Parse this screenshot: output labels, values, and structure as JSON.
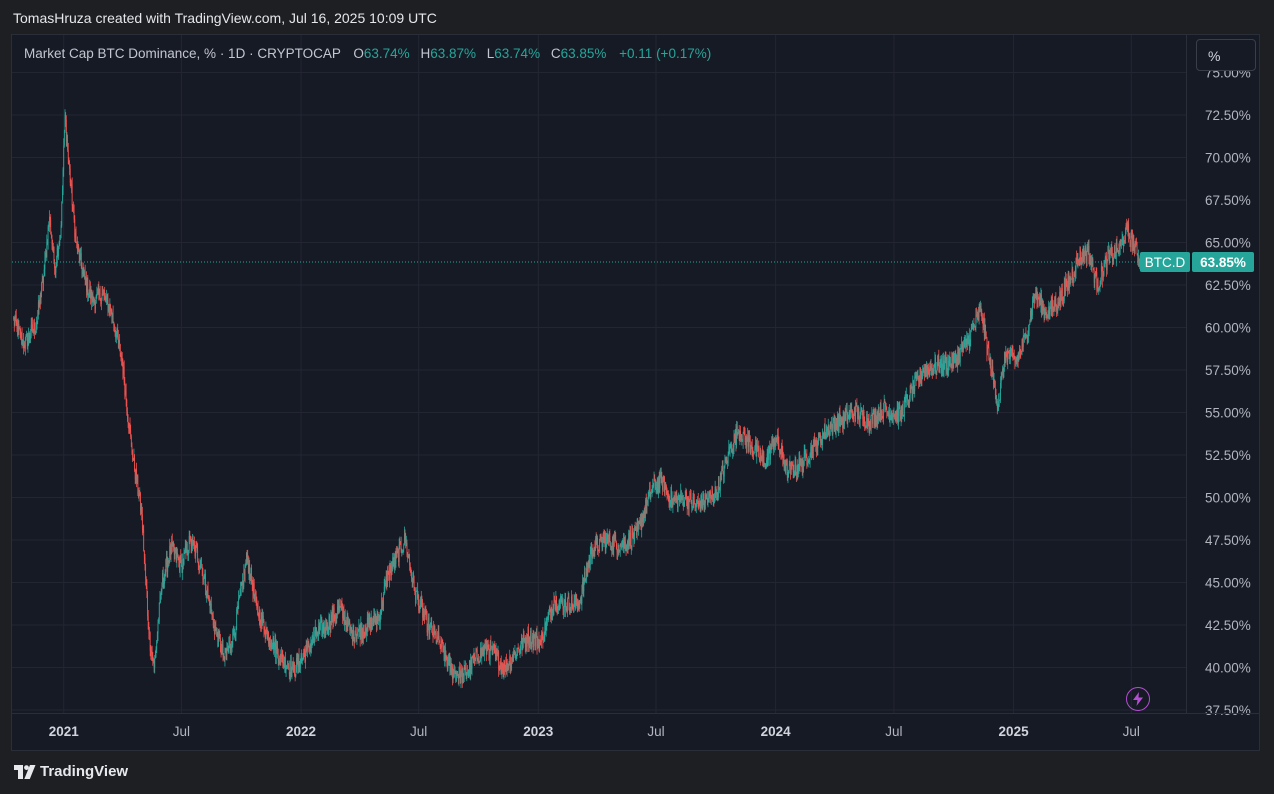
{
  "caption": "TomasHruza created with TradingView.com, Jul 16, 2025 10:09 UTC",
  "legend": {
    "title": "Market Cap BTC Dominance, % · 1D · CRYPTOCAP",
    "open_label": "O",
    "open_value": "63.74%",
    "high_label": "H",
    "high_value": "63.87%",
    "low_label": "L",
    "low_value": "63.74%",
    "close_label": "C",
    "close_value": "63.85%",
    "change": "+0.11 (+0.17%)"
  },
  "scale_button": "%",
  "brand": "TradingView",
  "icons": {
    "brand_logo": "tradingview-logo-icon",
    "bolt": "lightning-icon"
  },
  "colors": {
    "up": "#26a69a",
    "down": "#ef5350",
    "background": "#161a25",
    "grid": "#232632",
    "bolt": "#b34ed1"
  },
  "chart_data": {
    "type": "candlestick",
    "title": "Market Cap BTC Dominance, %",
    "interval": "1D",
    "exchange": "CRYPTOCAP",
    "x_range": [
      "2020-10-15",
      "2025-07-16"
    ],
    "ylim": [
      37.5,
      75
    ],
    "y_unit": "%",
    "y_ticks": [
      "75.00%",
      "72.50%",
      "70.00%",
      "67.50%",
      "65.00%",
      "62.50%",
      "60.00%",
      "57.50%",
      "55.00%",
      "52.50%",
      "50.00%",
      "47.50%",
      "45.00%",
      "42.50%",
      "40.00%",
      "37.50%"
    ],
    "x_ticks": [
      {
        "label": "2021",
        "date": "2021-01-01",
        "bold": true
      },
      {
        "label": "Jul",
        "date": "2021-07-01",
        "bold": false
      },
      {
        "label": "2022",
        "date": "2022-01-01",
        "bold": true
      },
      {
        "label": "Jul",
        "date": "2022-07-01",
        "bold": false
      },
      {
        "label": "2023",
        "date": "2023-01-01",
        "bold": true
      },
      {
        "label": "Jul",
        "date": "2023-07-01",
        "bold": false
      },
      {
        "label": "2024",
        "date": "2024-01-01",
        "bold": true
      },
      {
        "label": "Jul",
        "date": "2024-07-01",
        "bold": false
      },
      {
        "label": "2025",
        "date": "2025-01-01",
        "bold": true
      },
      {
        "label": "Jul",
        "date": "2025-07-01",
        "bold": false
      }
    ],
    "price_line": {
      "label": "BTC.D",
      "value": 63.85,
      "value_text": "63.85%"
    },
    "series": [
      {
        "name": "BTC.D",
        "points": [
          {
            "date": "2020-10-15",
            "value": 60.5
          },
          {
            "date": "2020-11-01",
            "value": 59.0
          },
          {
            "date": "2020-11-20",
            "value": 60.2
          },
          {
            "date": "2020-12-01",
            "value": 63.0
          },
          {
            "date": "2020-12-10",
            "value": 66.5
          },
          {
            "date": "2020-12-18",
            "value": 63.5
          },
          {
            "date": "2020-12-28",
            "value": 66.0
          },
          {
            "date": "2021-01-03",
            "value": 72.5
          },
          {
            "date": "2021-01-08",
            "value": 70.0
          },
          {
            "date": "2021-01-20",
            "value": 65.0
          },
          {
            "date": "2021-02-01",
            "value": 63.0
          },
          {
            "date": "2021-02-15",
            "value": 61.5
          },
          {
            "date": "2021-03-01",
            "value": 62.0
          },
          {
            "date": "2021-03-15",
            "value": 61.0
          },
          {
            "date": "2021-04-01",
            "value": 58.0
          },
          {
            "date": "2021-04-15",
            "value": 53.0
          },
          {
            "date": "2021-05-01",
            "value": 49.0
          },
          {
            "date": "2021-05-12",
            "value": 42.0
          },
          {
            "date": "2021-05-20",
            "value": 40.0
          },
          {
            "date": "2021-06-01",
            "value": 45.0
          },
          {
            "date": "2021-06-15",
            "value": 47.0
          },
          {
            "date": "2021-07-01",
            "value": 46.0
          },
          {
            "date": "2021-07-15",
            "value": 47.5
          },
          {
            "date": "2021-08-01",
            "value": 46.0
          },
          {
            "date": "2021-08-20",
            "value": 42.5
          },
          {
            "date": "2021-09-05",
            "value": 40.5
          },
          {
            "date": "2021-09-20",
            "value": 42.0
          },
          {
            "date": "2021-10-10",
            "value": 46.5
          },
          {
            "date": "2021-10-25",
            "value": 43.5
          },
          {
            "date": "2021-11-10",
            "value": 42.0
          },
          {
            "date": "2021-12-01",
            "value": 40.5
          },
          {
            "date": "2021-12-20",
            "value": 39.8
          },
          {
            "date": "2022-01-10",
            "value": 41.0
          },
          {
            "date": "2022-01-25",
            "value": 42.0
          },
          {
            "date": "2022-02-10",
            "value": 42.5
          },
          {
            "date": "2022-03-01",
            "value": 43.5
          },
          {
            "date": "2022-03-20",
            "value": 42.0
          },
          {
            "date": "2022-04-10",
            "value": 42.3
          },
          {
            "date": "2022-05-01",
            "value": 43.0
          },
          {
            "date": "2022-05-15",
            "value": 45.5
          },
          {
            "date": "2022-06-10",
            "value": 47.5
          },
          {
            "date": "2022-06-25",
            "value": 44.5
          },
          {
            "date": "2022-07-15",
            "value": 42.5
          },
          {
            "date": "2022-08-01",
            "value": 41.5
          },
          {
            "date": "2022-08-20",
            "value": 39.8
          },
          {
            "date": "2022-09-08",
            "value": 39.5
          },
          {
            "date": "2022-09-25",
            "value": 40.5
          },
          {
            "date": "2022-10-15",
            "value": 41.2
          },
          {
            "date": "2022-11-10",
            "value": 40.0
          },
          {
            "date": "2022-11-25",
            "value": 40.8
          },
          {
            "date": "2022-12-15",
            "value": 41.8
          },
          {
            "date": "2023-01-05",
            "value": 41.5
          },
          {
            "date": "2023-01-25",
            "value": 44.0
          },
          {
            "date": "2023-02-10",
            "value": 43.7
          },
          {
            "date": "2023-03-05",
            "value": 43.8
          },
          {
            "date": "2023-03-25",
            "value": 47.0
          },
          {
            "date": "2023-04-15",
            "value": 47.5
          },
          {
            "date": "2023-05-10",
            "value": 47.2
          },
          {
            "date": "2023-06-01",
            "value": 47.8
          },
          {
            "date": "2023-06-25",
            "value": 50.5
          },
          {
            "date": "2023-07-10",
            "value": 51.0
          },
          {
            "date": "2023-07-25",
            "value": 49.8
          },
          {
            "date": "2023-08-15",
            "value": 50.0
          },
          {
            "date": "2023-09-01",
            "value": 49.5
          },
          {
            "date": "2023-10-01",
            "value": 50.2
          },
          {
            "date": "2023-10-20",
            "value": 52.5
          },
          {
            "date": "2023-11-05",
            "value": 54.0
          },
          {
            "date": "2023-11-25",
            "value": 53.0
          },
          {
            "date": "2023-12-15",
            "value": 52.0
          },
          {
            "date": "2024-01-01",
            "value": 53.5
          },
          {
            "date": "2024-01-20",
            "value": 51.5
          },
          {
            "date": "2024-02-10",
            "value": 52.0
          },
          {
            "date": "2024-03-01",
            "value": 53.0
          },
          {
            "date": "2024-03-20",
            "value": 54.0
          },
          {
            "date": "2024-04-10",
            "value": 54.5
          },
          {
            "date": "2024-05-01",
            "value": 55.0
          },
          {
            "date": "2024-05-25",
            "value": 54.5
          },
          {
            "date": "2024-06-15",
            "value": 55.2
          },
          {
            "date": "2024-07-10",
            "value": 54.8
          },
          {
            "date": "2024-07-25",
            "value": 56.0
          },
          {
            "date": "2024-08-15",
            "value": 57.5
          },
          {
            "date": "2024-09-10",
            "value": 57.8
          },
          {
            "date": "2024-10-01",
            "value": 58.0
          },
          {
            "date": "2024-10-20",
            "value": 59.0
          },
          {
            "date": "2024-11-12",
            "value": 61.0
          },
          {
            "date": "2024-11-25",
            "value": 58.0
          },
          {
            "date": "2024-12-08",
            "value": 55.5
          },
          {
            "date": "2024-12-20",
            "value": 58.5
          },
          {
            "date": "2025-01-05",
            "value": 58.0
          },
          {
            "date": "2025-01-20",
            "value": 59.5
          },
          {
            "date": "2025-02-03",
            "value": 62.0
          },
          {
            "date": "2025-02-20",
            "value": 60.8
          },
          {
            "date": "2025-03-10",
            "value": 61.5
          },
          {
            "date": "2025-03-25",
            "value": 62.5
          },
          {
            "date": "2025-04-10",
            "value": 64.0
          },
          {
            "date": "2025-04-25",
            "value": 64.5
          },
          {
            "date": "2025-05-10",
            "value": 62.5
          },
          {
            "date": "2025-05-25",
            "value": 64.0
          },
          {
            "date": "2025-06-10",
            "value": 64.5
          },
          {
            "date": "2025-06-25",
            "value": 65.7
          },
          {
            "date": "2025-07-05",
            "value": 64.8
          },
          {
            "date": "2025-07-16",
            "value": 63.85
          }
        ]
      }
    ]
  }
}
